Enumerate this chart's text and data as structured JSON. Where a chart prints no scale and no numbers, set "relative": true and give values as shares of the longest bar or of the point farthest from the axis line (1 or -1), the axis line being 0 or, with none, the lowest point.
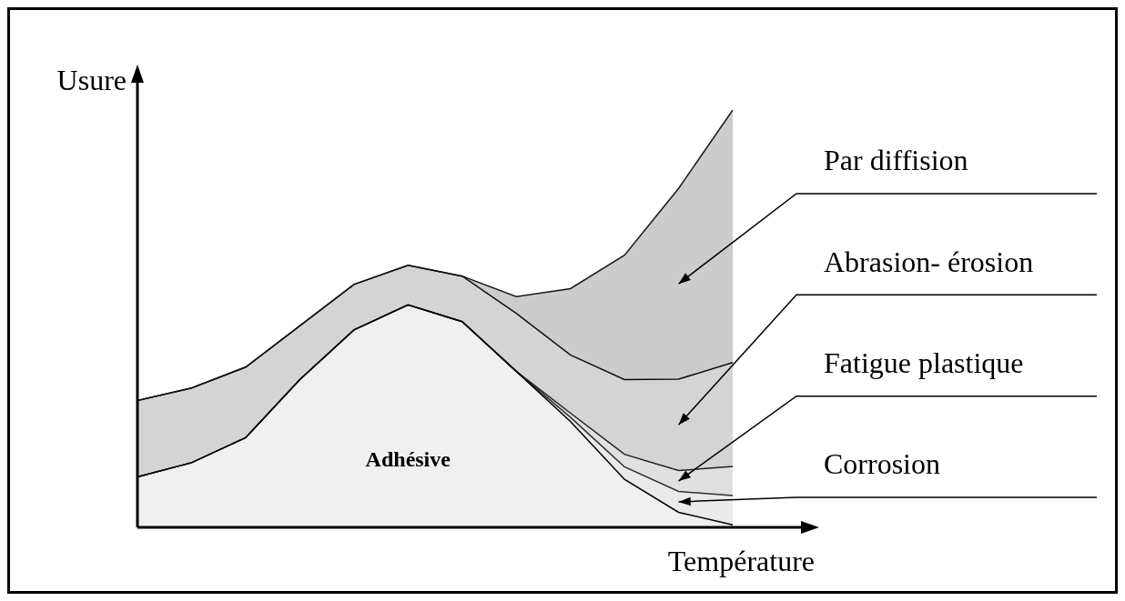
{
  "chart_data": {
    "type": "area",
    "xlabel": "Température",
    "ylabel": "Usure",
    "relative": true,
    "stacked": true,
    "legend": false,
    "grid": false,
    "categories": [
      null,
      null,
      null,
      null,
      null,
      null,
      null,
      null,
      null,
      null,
      null,
      null
    ],
    "series": [
      {
        "name": "Adhésive",
        "color": "#000000",
        "values": [
          0.121,
          0.155,
          0.215,
          0.354,
          0.473,
          0.533,
          0.493,
          0.374,
          0.254,
          0.115,
          0.036,
          0.006
        ]
      },
      {
        "name": "Corrosion",
        "color": "#303030",
        "values": [
          0,
          0,
          0,
          0,
          0,
          0,
          0,
          0,
          0.01,
          0.03,
          0.05,
          0.07
        ]
      },
      {
        "name": "Fatigue plastique",
        "color": "#202020",
        "values": [
          0,
          0,
          0,
          0,
          0,
          0,
          0,
          0,
          0.01,
          0.03,
          0.05,
          0.07
        ]
      },
      {
        "name": "Abrasion- érosion",
        "color": "#101010",
        "values": [
          0.183,
          0.179,
          0.169,
          0.129,
          0.109,
          0.095,
          0.109,
          0.139,
          0.139,
          0.179,
          0.219,
          0.249
        ]
      },
      {
        "name": "Par diffision",
        "color": "#181818",
        "values": [
          0,
          0,
          0,
          0,
          0,
          0,
          0,
          0.04,
          0.159,
          0.298,
          0.457,
          0.605
        ]
      }
    ]
  }
}
